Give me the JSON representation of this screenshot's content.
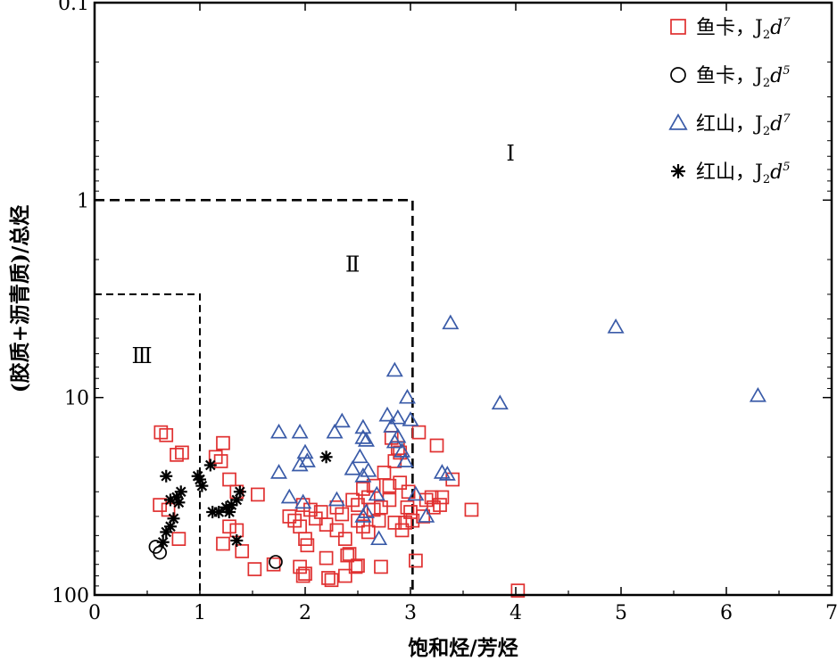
{
  "chart_data": {
    "type": "scatter",
    "xlabel": "饱和烃/芳烃",
    "ylabel": "(胶质+沥青质)/总烃",
    "xlim": [
      0,
      7
    ],
    "ylim": [
      0.1,
      100
    ],
    "y_scale": "log",
    "y_reversed": true,
    "x_ticks": [
      0,
      1,
      2,
      3,
      4,
      5,
      6,
      7
    ],
    "y_ticks": [
      0.1,
      1,
      10,
      100
    ],
    "y_tick_labels": [
      "0.1",
      "1",
      "10",
      "100"
    ],
    "legend_position": "top-right",
    "regions": [
      {
        "label": "Ⅰ",
        "x": 3.95,
        "y": 0.63
      },
      {
        "label": "Ⅱ",
        "x": 2.45,
        "y": 2.3
      },
      {
        "label": "Ⅲ",
        "x": 0.45,
        "y": 6.7
      }
    ],
    "boundaries": [
      {
        "name": "I-II",
        "x_max": 3.02,
        "y_min": 1,
        "style": "dashed"
      },
      {
        "name": "II-III",
        "x_max": 1.0,
        "y_min": 3.0,
        "style": "dashed"
      }
    ],
    "series": [
      {
        "name": "鱼卡, J2d7",
        "label": {
          "text": "鱼卡，J",
          "sub": "2",
          "d": "d",
          "sup": "7"
        },
        "marker": "square",
        "color": "#e03030",
        "points": [
          [
            0.63,
            15
          ],
          [
            0.68,
            15.5
          ],
          [
            0.78,
            19.5
          ],
          [
            0.83,
            19
          ],
          [
            0.62,
            35
          ],
          [
            0.7,
            37
          ],
          [
            0.8,
            52
          ],
          [
            1.15,
            20
          ],
          [
            1.2,
            21
          ],
          [
            1.22,
            17
          ],
          [
            1.28,
            26
          ],
          [
            1.35,
            30
          ],
          [
            1.28,
            45
          ],
          [
            1.35,
            47
          ],
          [
            1.22,
            55
          ],
          [
            1.4,
            60
          ],
          [
            1.55,
            31
          ],
          [
            1.52,
            74
          ],
          [
            1.7,
            70
          ],
          [
            1.85,
            40
          ],
          [
            1.9,
            42
          ],
          [
            1.95,
            45
          ],
          [
            1.98,
            35
          ],
          [
            2.0,
            52
          ],
          [
            2.02,
            56
          ],
          [
            1.95,
            72
          ],
          [
            1.98,
            80
          ],
          [
            2.05,
            37
          ],
          [
            2.1,
            41
          ],
          [
            2.15,
            38
          ],
          [
            2.2,
            44
          ],
          [
            2.2,
            65
          ],
          [
            2.22,
            82
          ],
          [
            2.25,
            84
          ],
          [
            2.3,
            36
          ],
          [
            2.3,
            47
          ],
          [
            2.35,
            39
          ],
          [
            2.38,
            52
          ],
          [
            2.4,
            63
          ],
          [
            2.38,
            80
          ],
          [
            2.42,
            62
          ],
          [
            2.45,
            33
          ],
          [
            2.5,
            35
          ],
          [
            2.5,
            42
          ],
          [
            2.55,
            45
          ],
          [
            2.55,
            29
          ],
          [
            2.48,
            72
          ],
          [
            2.5,
            71
          ],
          [
            2.6,
            48
          ],
          [
            2.6,
            32
          ],
          [
            2.65,
            37
          ],
          [
            2.65,
            28
          ],
          [
            2.7,
            42
          ],
          [
            2.72,
            36
          ],
          [
            2.72,
            72
          ],
          [
            2.75,
            24
          ],
          [
            2.8,
            28
          ],
          [
            2.8,
            33
          ],
          [
            2.82,
            16
          ],
          [
            2.85,
            43
          ],
          [
            2.85,
            21
          ],
          [
            2.88,
            18
          ],
          [
            2.9,
            27
          ],
          [
            2.9,
            19
          ],
          [
            2.92,
            47
          ],
          [
            2.95,
            43
          ],
          [
            2.97,
            36
          ],
          [
            2.98,
            30
          ],
          [
            3.0,
            38
          ],
          [
            3.02,
            42
          ],
          [
            3.05,
            67
          ],
          [
            3.08,
            15
          ],
          [
            3.12,
            40
          ],
          [
            3.15,
            33
          ],
          [
            3.2,
            32
          ],
          [
            3.22,
            36
          ],
          [
            3.25,
            17.5
          ],
          [
            3.28,
            35
          ],
          [
            3.3,
            32
          ],
          [
            3.4,
            26
          ],
          [
            3.58,
            37
          ],
          [
            2.0,
            78
          ],
          [
            4.02,
            95
          ]
        ]
      },
      {
        "name": "鱼卡, J2d5",
        "label": {
          "text": "鱼卡，J",
          "sub": "2",
          "d": "d",
          "sup": "5"
        },
        "marker": "circle",
        "color": "#000000",
        "points": [
          [
            0.58,
            57
          ],
          [
            0.62,
            61
          ],
          [
            1.72,
            68
          ]
        ]
      },
      {
        "name": "红山, J2d7",
        "label": {
          "text": "红山，J",
          "sub": "2",
          "d": "d",
          "sup": "7"
        },
        "marker": "triangle",
        "color": "#3a5ba8",
        "points": [
          [
            3.38,
            4.2
          ],
          [
            4.95,
            4.4
          ],
          [
            6.3,
            9.8
          ],
          [
            3.85,
            10.7
          ],
          [
            2.85,
            7.3
          ],
          [
            2.97,
            10
          ],
          [
            3.0,
            13
          ],
          [
            2.78,
            12.3
          ],
          [
            2.88,
            12.7
          ],
          [
            2.82,
            14
          ],
          [
            2.88,
            15.8
          ],
          [
            2.85,
            16.8
          ],
          [
            2.92,
            18.7
          ],
          [
            2.55,
            14.2
          ],
          [
            2.35,
            13.2
          ],
          [
            2.28,
            15
          ],
          [
            2.55,
            16
          ],
          [
            2.58,
            16.5
          ],
          [
            2.52,
            20
          ],
          [
            2.45,
            23
          ],
          [
            2.6,
            23.5
          ],
          [
            2.55,
            25
          ],
          [
            2.68,
            31
          ],
          [
            2.58,
            38
          ],
          [
            2.55,
            40
          ],
          [
            2.7,
            52
          ],
          [
            1.75,
            15
          ],
          [
            1.95,
            15
          ],
          [
            2.0,
            19
          ],
          [
            2.02,
            21
          ],
          [
            1.95,
            22
          ],
          [
            1.75,
            24
          ],
          [
            1.85,
            32
          ],
          [
            1.98,
            34
          ],
          [
            2.3,
            33
          ],
          [
            2.95,
            21
          ],
          [
            3.05,
            31
          ],
          [
            3.15,
            40
          ],
          [
            3.35,
            24.5
          ],
          [
            3.3,
            24
          ]
        ]
      },
      {
        "name": "红山, J2d5",
        "label": {
          "text": "红山，J",
          "sub": "2",
          "d": "d",
          "sup": "5"
        },
        "marker": "asterisk",
        "color": "#000000",
        "points": [
          [
            0.68,
            25
          ],
          [
            0.72,
            33
          ],
          [
            0.78,
            32
          ],
          [
            0.8,
            34
          ],
          [
            0.82,
            30
          ],
          [
            0.75,
            41
          ],
          [
            0.72,
            45
          ],
          [
            0.68,
            48
          ],
          [
            0.65,
            54
          ],
          [
            0.98,
            25
          ],
          [
            1.02,
            28
          ],
          [
            1.0,
            26
          ],
          [
            1.1,
            22
          ],
          [
            1.12,
            38
          ],
          [
            1.18,
            38
          ],
          [
            1.25,
            36
          ],
          [
            1.28,
            38
          ],
          [
            1.3,
            35
          ],
          [
            1.35,
            33
          ],
          [
            1.38,
            30
          ],
          [
            1.35,
            53
          ],
          [
            2.2,
            20
          ]
        ]
      }
    ]
  }
}
